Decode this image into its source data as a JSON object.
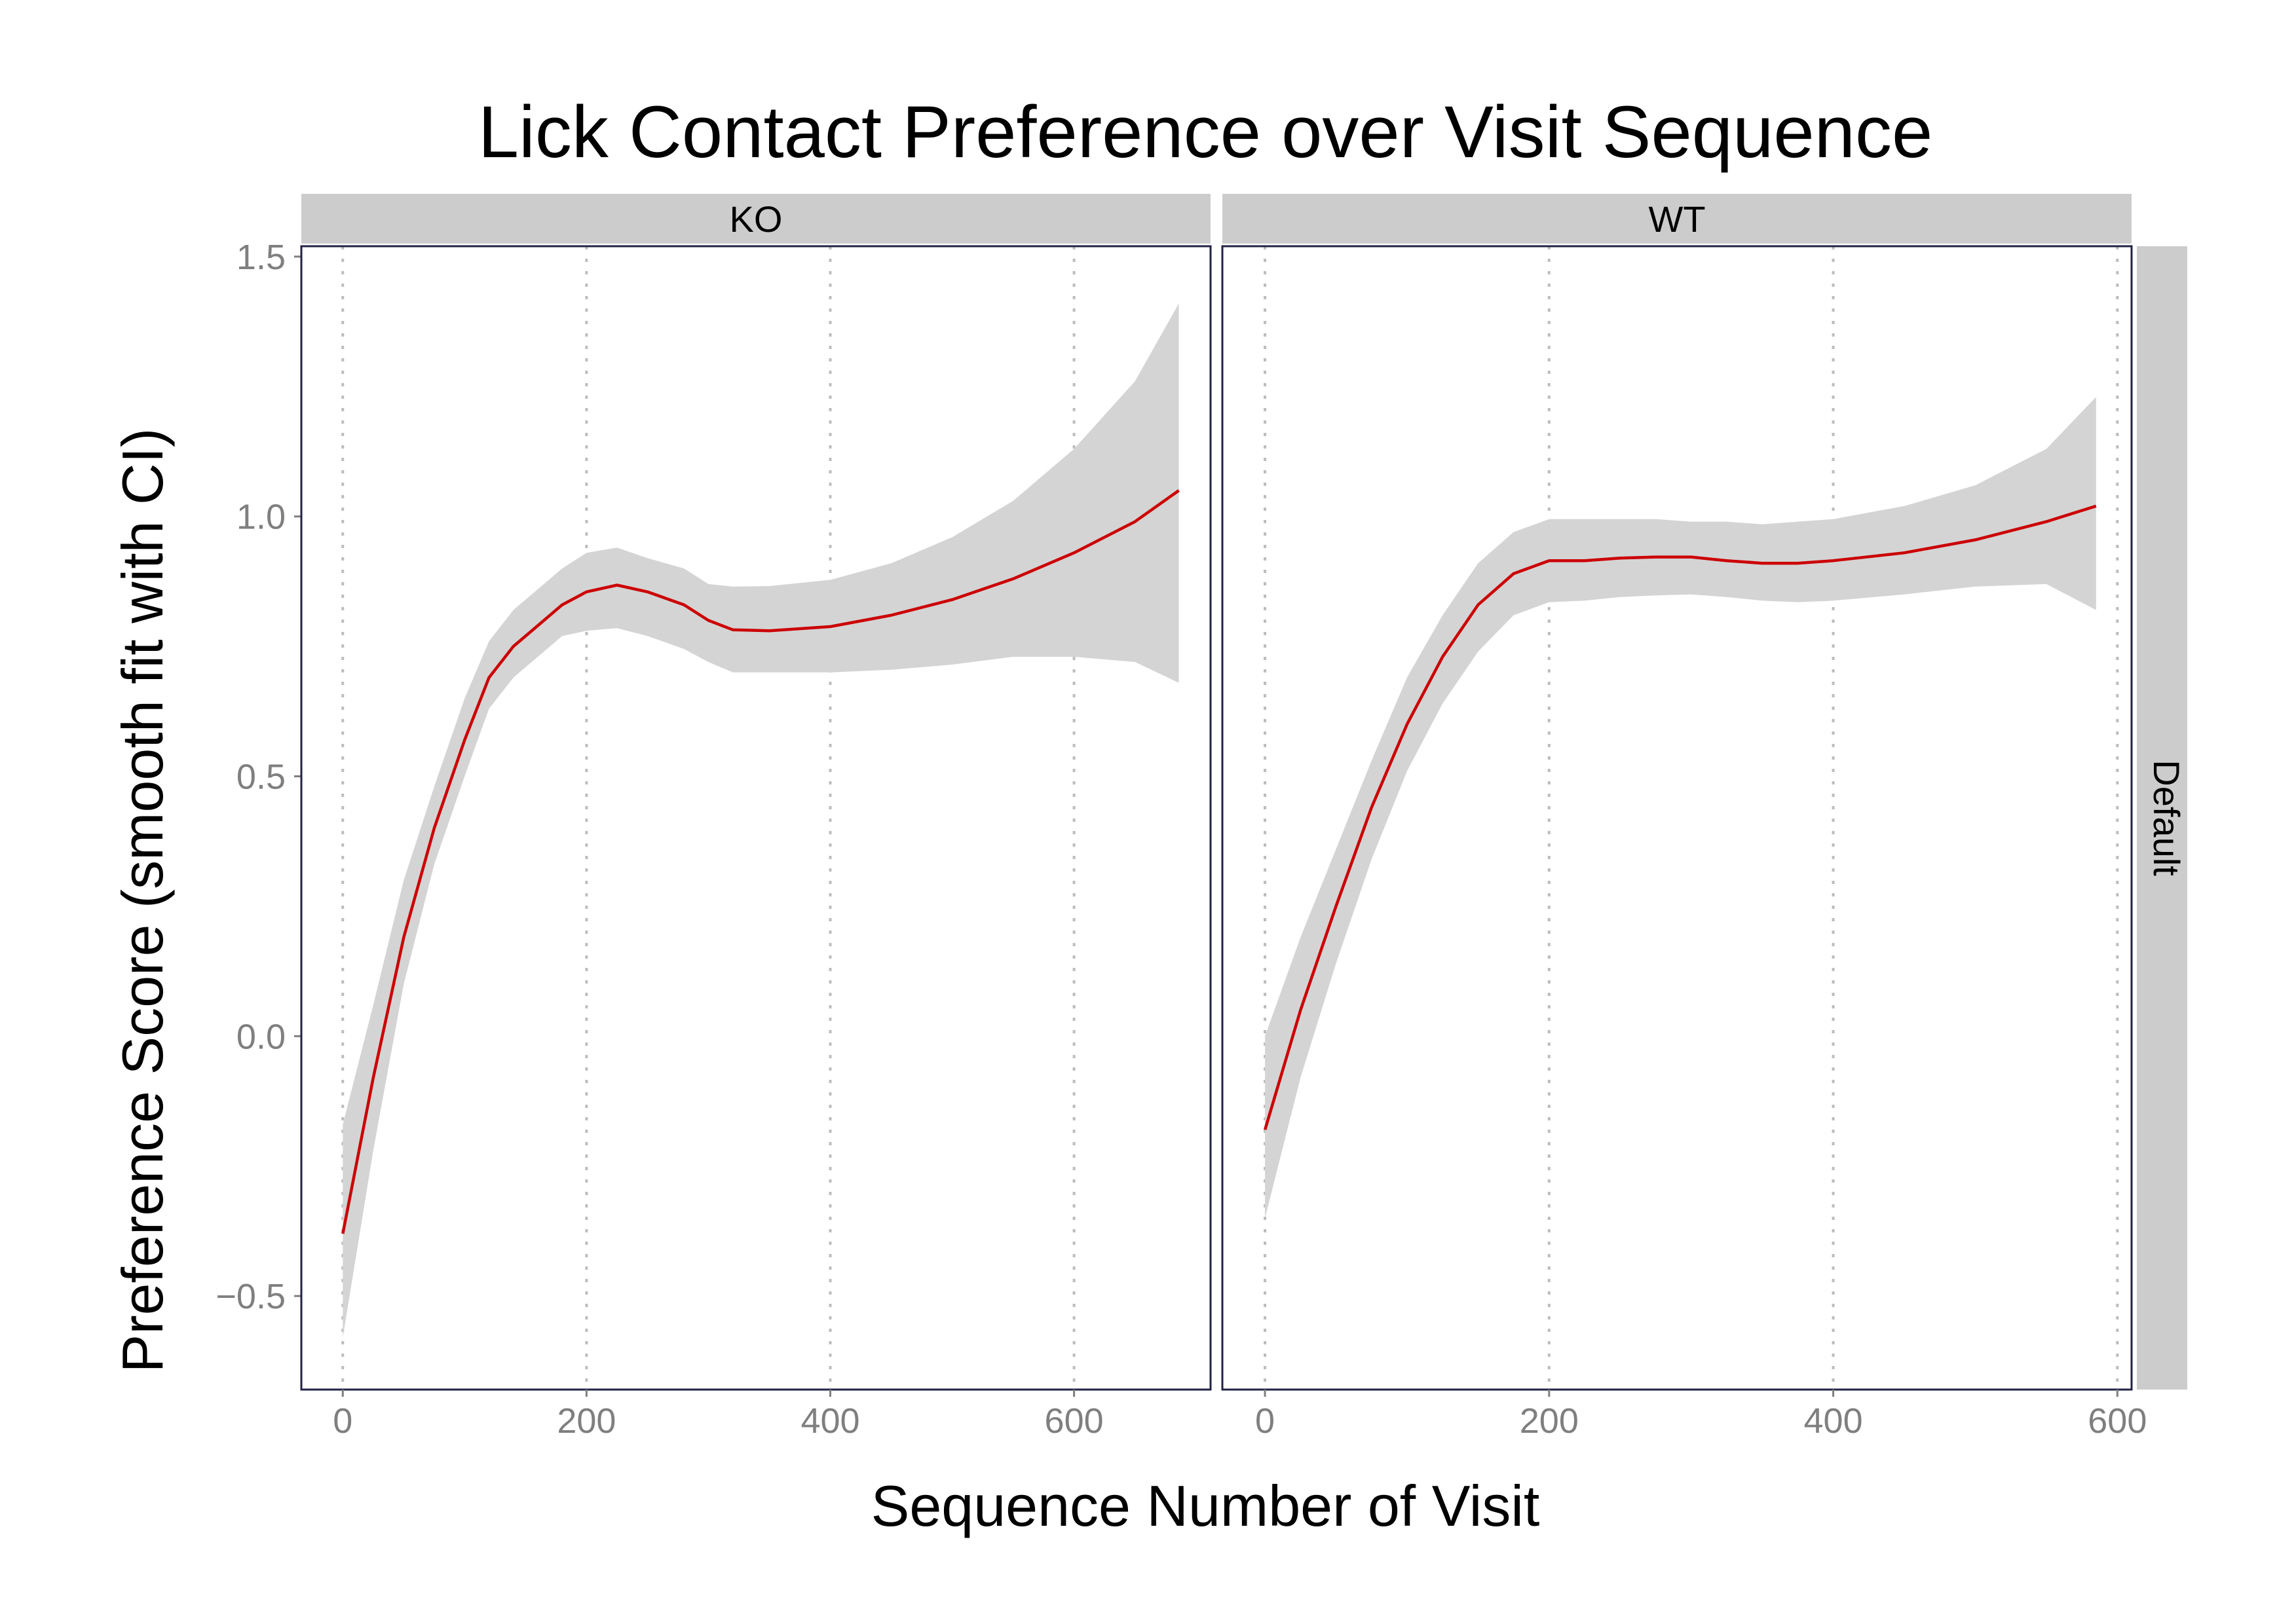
{
  "chart_data": {
    "type": "line",
    "title": "Lick Contact Preference over Visit Sequence",
    "xlabel": "Sequence Number of Visit",
    "ylabel": "Preference Score (smooth fit with CI)",
    "ylim": [
      -0.68,
      1.52
    ],
    "y_ticks": [
      -0.5,
      0.0,
      0.5,
      1.0,
      1.5
    ],
    "y_tick_labels": [
      "−0.5",
      "0.0",
      "0.5",
      "1.0",
      "1.5"
    ],
    "grid": "vertical dotted",
    "row_strip": "Default",
    "line_color": "#cc0000",
    "band_color": "#d4d4d4",
    "panels": [
      {
        "strip": "KO",
        "xlim": [
          -34,
          712
        ],
        "x_ticks": [
          0,
          200,
          400,
          600
        ],
        "x_tick_labels": [
          "0",
          "200",
          "400",
          "600"
        ],
        "x": [
          0,
          25,
          50,
          75,
          100,
          120,
          140,
          160,
          180,
          200,
          225,
          250,
          280,
          300,
          320,
          350,
          400,
          450,
          500,
          550,
          600,
          650,
          686
        ],
        "y": [
          -0.38,
          -0.08,
          0.19,
          0.4,
          0.57,
          0.69,
          0.75,
          0.79,
          0.83,
          0.855,
          0.868,
          0.855,
          0.83,
          0.8,
          0.782,
          0.78,
          0.788,
          0.81,
          0.84,
          0.88,
          0.93,
          0.99,
          1.05
        ],
        "ci_lower": [
          -0.58,
          -0.22,
          0.1,
          0.33,
          0.5,
          0.63,
          0.69,
          0.73,
          0.77,
          0.78,
          0.785,
          0.77,
          0.745,
          0.72,
          0.7,
          0.7,
          0.7,
          0.705,
          0.715,
          0.73,
          0.73,
          0.72,
          0.68
        ],
        "ci_upper": [
          -0.17,
          0.06,
          0.3,
          0.48,
          0.65,
          0.76,
          0.82,
          0.86,
          0.9,
          0.93,
          0.94,
          0.92,
          0.9,
          0.87,
          0.865,
          0.866,
          0.878,
          0.91,
          0.96,
          1.03,
          1.13,
          1.26,
          1.41
        ]
      },
      {
        "strip": "WT",
        "xlim": [
          -30,
          610
        ],
        "x_ticks": [
          0,
          200,
          400,
          600
        ],
        "x_tick_labels": [
          "0",
          "200",
          "400",
          "600"
        ],
        "x": [
          0,
          25,
          50,
          75,
          100,
          125,
          150,
          175,
          200,
          225,
          250,
          275,
          300,
          325,
          350,
          375,
          400,
          450,
          500,
          550,
          585
        ],
        "y": [
          -0.18,
          0.05,
          0.25,
          0.44,
          0.6,
          0.73,
          0.83,
          0.89,
          0.915,
          0.915,
          0.92,
          0.922,
          0.922,
          0.915,
          0.91,
          0.91,
          0.915,
          0.93,
          0.955,
          0.99,
          1.02
        ],
        "ci_lower": [
          -0.35,
          -0.08,
          0.14,
          0.34,
          0.51,
          0.64,
          0.74,
          0.81,
          0.835,
          0.838,
          0.845,
          0.848,
          0.85,
          0.845,
          0.838,
          0.835,
          0.838,
          0.85,
          0.865,
          0.87,
          0.82
        ],
        "ci_upper": [
          0.0,
          0.19,
          0.36,
          0.53,
          0.69,
          0.81,
          0.91,
          0.97,
          0.995,
          0.995,
          0.995,
          0.995,
          0.99,
          0.99,
          0.985,
          0.99,
          0.995,
          1.02,
          1.06,
          1.13,
          1.23
        ]
      }
    ]
  }
}
